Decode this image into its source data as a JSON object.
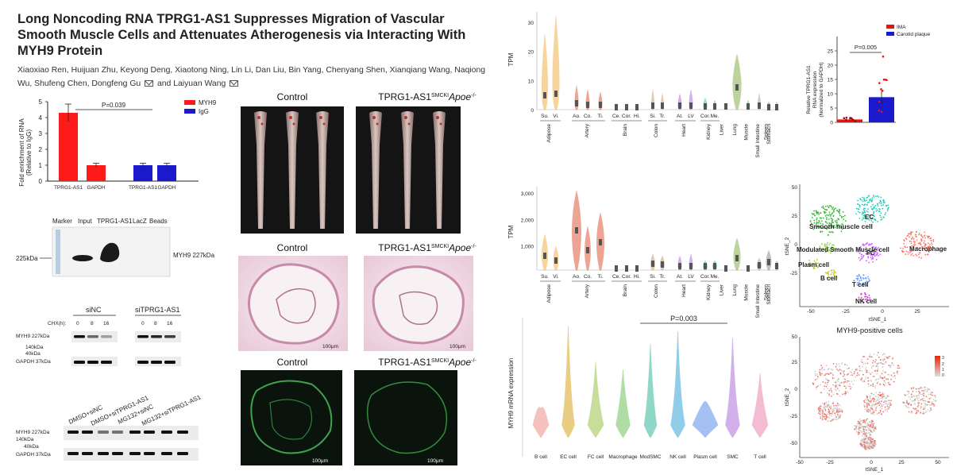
{
  "title": "Long Noncoding RNA TPRG1-AS1 Suppresses Migration of Vascular Smooth Muscle Cells and Attenuates Atherogenesis via Interacting With MYH9 Protein",
  "authors_part1": "Xiaoxiao Ren, Huijuan Zhu, Keyong Deng, Xiaotong Ning, Lin Li, Dan Liu, Bin Yang, Chenyang Shen, Xianqiang Wang, Naqiong Wu, Shufeng Chen, Dongfeng Gu",
  "authors_and": "and",
  "authors_last": "Laiyuan Wang",
  "rip": {
    "ylabel_1": "Fold enrichment of RNA",
    "ylabel_2": "(Relative to IgG)",
    "pval": "P=0.039",
    "legend": [
      "MYH9",
      "IgG"
    ],
    "colors": {
      "MYH9": "#ff1a1a",
      "IgG": "#1a1acc"
    },
    "yticks": [
      "0",
      "1",
      "2",
      "3",
      "4",
      "5"
    ],
    "xlabels": [
      "TPRG1-AS1",
      "GAPDH",
      "TPRG1-AS1",
      "GAPDH"
    ]
  },
  "chart_data": [
    {
      "type": "bar",
      "categories": [
        "TPRG1-AS1",
        "GAPDH",
        "TPRG1-AS1",
        "GAPDH"
      ],
      "series": [
        {
          "name": "MYH9",
          "values": [
            4.3,
            1.0,
            null,
            null
          ]
        },
        {
          "name": "IgG",
          "values": [
            null,
            null,
            1.0,
            1.0
          ]
        }
      ],
      "ylim": [
        0,
        5
      ],
      "ylabel": "Fold enrichment of RNA (Relative to IgG)"
    },
    {
      "type": "bar",
      "categories": [
        "IMA",
        "Carotid plaque"
      ],
      "values": [
        1.0,
        8.8
      ],
      "ylim": [
        0,
        30
      ],
      "ylabel": "Relative TPRG1-AS1 RNA expression (Normalized to GAPDH)"
    }
  ],
  "pulldown": {
    "lanes": [
      "Marker",
      "Input",
      "TPRG1-AS1",
      "LacZ",
      "Beads"
    ],
    "left_label": "225kDa",
    "right_label": "MYH9 227kDa"
  },
  "chx": {
    "groups": [
      "siNC",
      "siTPRG1-AS1"
    ],
    "chx_label": "CHX(h):",
    "times": [
      "0",
      "8",
      "16",
      "0",
      "8",
      "16"
    ],
    "rows": [
      "MYH9 227kDa",
      "140kDa",
      "40kDa",
      "GAPDH 37kDa"
    ]
  },
  "mg132": {
    "lanes": [
      "DMSO+siNC",
      "DMSO+siTPRG1-AS1",
      "MG132+siNC",
      "MG132+siTPRG1-AS1"
    ],
    "rows": [
      "MYH9 227kDa",
      "140kDa",
      "40kDa",
      "GAPDH 37kDa"
    ]
  },
  "micro": {
    "control": "Control",
    "treat_main": "TPRG1-AS1",
    "treat_sup": "SMCKI",
    "treat_rest": "Apoe",
    "treat_sup2": "-/-",
    "scale": "100μm"
  },
  "gtex1": {
    "ylabel": "TPM",
    "yticks": [
      "0",
      "10",
      "20",
      "30"
    ],
    "sub": [
      "Su.",
      "Vi.",
      "Ao.",
      "Co.",
      "Ti.",
      "Ce.",
      "Cor.",
      "Hi.",
      "Si.",
      "Tr.",
      "At.",
      "LV",
      "Cor.",
      "Me."
    ],
    "tissues": [
      "Adipose",
      "Artery",
      "Brain",
      "Colon",
      "Heart",
      "Kidney",
      "Liver",
      "Lung",
      "Muscle",
      "Small Intestine",
      "Spleen",
      "Stomach"
    ]
  },
  "qpcr": {
    "ylabel_1": "Relative TPRG1-AS1",
    "ylabel_2": "RNA expression",
    "ylabel_3": "(Normalized to GAPDH)",
    "pval": "P=0.005",
    "legend": [
      "IMA",
      "Carotid plaque"
    ],
    "colors": {
      "IMA": "#ee1111",
      "Carotid plaque": "#1a1acc"
    },
    "yticks": [
      "0",
      "5",
      "10",
      "15",
      "20",
      "25"
    ]
  },
  "gtex2": {
    "ylabel": "TPM",
    "yticks": [
      "1,000",
      "2,000",
      "3,000"
    ],
    "sub": [
      "Su.",
      "Vi.",
      "Ao.",
      "Co.",
      "Ti.",
      "Ce.",
      "Cor.",
      "Hi.",
      "Si.",
      "Tr.",
      "At.",
      "LV",
      "Cor.",
      "Me."
    ],
    "tissues": [
      "Adipose",
      "Artery",
      "Brain",
      "Colon",
      "Heart",
      "Kidney",
      "Liver",
      "Lung",
      "Muscle",
      "Small Intestine",
      "Spleen",
      "Stomach"
    ]
  },
  "tsne1": {
    "xlabel": "tSNE_1",
    "ylabel": "tSNE_2",
    "xticks": [
      "-50",
      "-25",
      "0",
      "25"
    ],
    "yticks": [
      "-25",
      "0",
      "25",
      "50"
    ],
    "clusters": [
      "EC",
      "Smooth muscle cell",
      "Modulated Smooth Muscle cell",
      "FC",
      "Macrophage",
      "Plasm cell",
      "B cell",
      "T cell",
      "NK cell"
    ]
  },
  "violin": {
    "ylabel": "MYH9 mRNA expression",
    "pval": "P=0.003",
    "cells": [
      "B cell",
      "EC cell",
      "FC cell",
      "Macrophage",
      "ModSMC",
      "NK cell",
      "Plasm cell",
      "SMC",
      "T cell"
    ]
  },
  "tsne2": {
    "title": "MYH9-positive  cells",
    "xlabel": "tSNE_1",
    "ylabel": "tSNE_2",
    "xticks": [
      "-50",
      "-25",
      "0",
      "25",
      "50"
    ],
    "yticks": [
      "-50",
      "-25",
      "0",
      "25",
      "50"
    ],
    "legend": [
      "3",
      "2",
      "1",
      "0"
    ]
  }
}
